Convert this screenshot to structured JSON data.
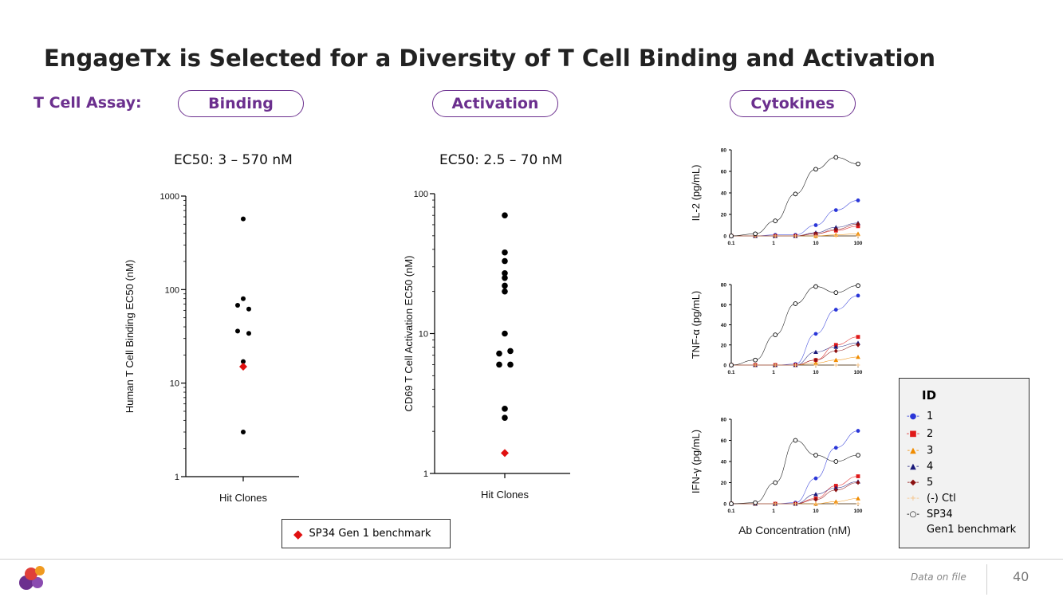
{
  "slide": {
    "title": "EngageTx is Selected for a Diversity of T Cell Binding and Activation",
    "assay_label": "T Cell Assay:",
    "pills": [
      "Binding",
      "Activation",
      "Cytokines"
    ],
    "footer_note": "Data on file",
    "page_number": "40",
    "colors": {
      "accent": "#6b2f8e",
      "benchmark": "#e01010"
    }
  },
  "binding_ec50": "EC50: 3 – 570 nM",
  "activation_ec50": "EC50: 2.5 – 70 nM",
  "benchmark_legend": "SP34 Gen 1 benchmark",
  "cytokine_legend": {
    "title": "ID",
    "items": [
      {
        "label": "1",
        "color": "#2a36d8",
        "marker": "●"
      },
      {
        "label": "2",
        "color": "#e01a1a",
        "marker": "■"
      },
      {
        "label": "3",
        "color": "#f08c00",
        "marker": "▲"
      },
      {
        "label": "4",
        "color": "#1a1a7a",
        "marker": "▲"
      },
      {
        "label": "5",
        "color": "#8b1010",
        "marker": "◆"
      },
      {
        "label": "(-) Ctl",
        "color": "#f5c080",
        "marker": "+"
      },
      {
        "label": "SP34",
        "color": "#000000",
        "marker": "○"
      },
      {
        "label": "Gen1 benchmark",
        "color": "#000000",
        "marker": ""
      }
    ]
  },
  "chart_data": [
    {
      "type": "scatter",
      "title": "",
      "xlabel": "Hit Clones",
      "ylabel": "Human T Cell Binding EC50 (nM)",
      "yscale": "log",
      "ylim": [
        1,
        1000
      ],
      "yticks": [
        "1",
        "10",
        "100",
        "1000"
      ],
      "categories": [
        "Hit Clones"
      ],
      "series": [
        {
          "name": "Hit clones",
          "color": "#000000",
          "marker": "circle",
          "values": [
            570,
            80,
            68,
            62,
            36,
            34,
            17,
            3
          ]
        },
        {
          "name": "SP34 Gen 1 benchmark",
          "color": "#e01010",
          "marker": "diamond",
          "values": [
            15
          ]
        }
      ]
    },
    {
      "type": "scatter",
      "title": "",
      "xlabel": "Hit Clones",
      "ylabel": "CD69 T Cell Activation EC50 (nM)",
      "yscale": "log",
      "ylim": [
        1,
        100
      ],
      "yticks": [
        "1",
        "10",
        "100"
      ],
      "categories": [
        "Hit Clones"
      ],
      "series": [
        {
          "name": "Hit clones",
          "color": "#000000",
          "marker": "circle",
          "values": [
            70,
            38,
            33,
            27,
            25,
            22,
            20,
            10,
            7.5,
            7.2,
            6,
            6,
            2.9,
            2.5
          ]
        },
        {
          "name": "SP34 Gen 1 benchmark",
          "color": "#e01010",
          "marker": "diamond",
          "values": [
            1.4
          ]
        }
      ]
    },
    {
      "type": "line",
      "title": "",
      "xlabel": "",
      "ylabel": "IL-2 (pg/mL)",
      "xscale": "log",
      "xlim": [
        0.1,
        100
      ],
      "ylim": [
        0,
        80
      ],
      "xticks": [
        "0.1",
        "1",
        "10",
        "100"
      ],
      "yticks": [
        "0",
        "20",
        "40",
        "60",
        "80"
      ],
      "x": [
        0.1,
        0.37,
        1.1,
        3.3,
        10,
        30,
        100
      ],
      "series": [
        {
          "name": "1",
          "color": "#2a36d8",
          "values": [
            0,
            0,
            1,
            1,
            10,
            24,
            33
          ]
        },
        {
          "name": "2",
          "color": "#e01a1a",
          "values": [
            0,
            0,
            0,
            0,
            2,
            5,
            9
          ]
        },
        {
          "name": "3",
          "color": "#f08c00",
          "values": [
            0,
            0,
            0,
            0,
            0,
            1,
            2
          ]
        },
        {
          "name": "4",
          "color": "#1a1a7a",
          "values": [
            0,
            0,
            0,
            0,
            3,
            8,
            12
          ]
        },
        {
          "name": "5",
          "color": "#8b1010",
          "values": [
            0,
            0,
            0,
            0,
            2,
            6,
            11
          ]
        },
        {
          "name": "(-) Ctl",
          "color": "#f5c080",
          "values": [
            0,
            0,
            0,
            0,
            0,
            0,
            0
          ]
        },
        {
          "name": "SP34",
          "color": "#000000",
          "values": [
            0,
            2,
            14,
            39,
            62,
            73,
            67
          ]
        }
      ]
    },
    {
      "type": "line",
      "title": "",
      "xlabel": "",
      "ylabel": "TNF-α (pg/mL)",
      "xscale": "log",
      "xlim": [
        0.1,
        100
      ],
      "ylim": [
        0,
        80
      ],
      "xticks": [
        "0.1",
        "1",
        "10",
        "100"
      ],
      "yticks": [
        "0",
        "20",
        "40",
        "60",
        "80"
      ],
      "x": [
        0.1,
        0.37,
        1.1,
        3.3,
        10,
        30,
        100
      ],
      "series": [
        {
          "name": "1",
          "color": "#2a36d8",
          "values": [
            0,
            0,
            0,
            1,
            31,
            55,
            69
          ]
        },
        {
          "name": "2",
          "color": "#e01a1a",
          "values": [
            0,
            0,
            0,
            0,
            5,
            20,
            28
          ]
        },
        {
          "name": "3",
          "color": "#f08c00",
          "values": [
            0,
            0,
            0,
            0,
            2,
            5,
            8
          ]
        },
        {
          "name": "4",
          "color": "#1a1a7a",
          "values": [
            0,
            0,
            0,
            0,
            13,
            18,
            22
          ]
        },
        {
          "name": "5",
          "color": "#8b1010",
          "values": [
            0,
            0,
            0,
            0,
            5,
            14,
            20
          ]
        },
        {
          "name": "(-) Ctl",
          "color": "#f5c080",
          "values": [
            0,
            0,
            0,
            0,
            0,
            0,
            0
          ]
        },
        {
          "name": "SP34",
          "color": "#000000",
          "values": [
            0,
            5,
            30,
            61,
            78,
            72,
            79
          ]
        }
      ]
    },
    {
      "type": "line",
      "title": "",
      "xlabel": "Ab Concentration (nM)",
      "ylabel": "IFN-γ (pg/mL)",
      "xscale": "log",
      "xlim": [
        0.1,
        100
      ],
      "ylim": [
        0,
        80
      ],
      "xticks": [
        "0.1",
        "1",
        "10",
        "100"
      ],
      "yticks": [
        "0",
        "20",
        "40",
        "60",
        "80"
      ],
      "x": [
        0.1,
        0.37,
        1.1,
        3.3,
        10,
        30,
        100
      ],
      "series": [
        {
          "name": "1",
          "color": "#2a36d8",
          "values": [
            0,
            0,
            0,
            1,
            24,
            53,
            69
          ]
        },
        {
          "name": "2",
          "color": "#e01a1a",
          "values": [
            0,
            0,
            0,
            0,
            5,
            17,
            26
          ]
        },
        {
          "name": "3",
          "color": "#f08c00",
          "values": [
            0,
            0,
            0,
            0,
            0,
            2,
            5
          ]
        },
        {
          "name": "4",
          "color": "#1a1a7a",
          "values": [
            0,
            0,
            0,
            0,
            9,
            15,
            21
          ]
        },
        {
          "name": "5",
          "color": "#8b1010",
          "values": [
            0,
            0,
            0,
            0,
            4,
            13,
            20
          ]
        },
        {
          "name": "(-) Ctl",
          "color": "#f5c080",
          "values": [
            0,
            0,
            0,
            0,
            0,
            0,
            0
          ]
        },
        {
          "name": "SP34",
          "color": "#000000",
          "values": [
            0,
            1,
            20,
            60,
            46,
            40,
            46
          ]
        }
      ]
    }
  ]
}
